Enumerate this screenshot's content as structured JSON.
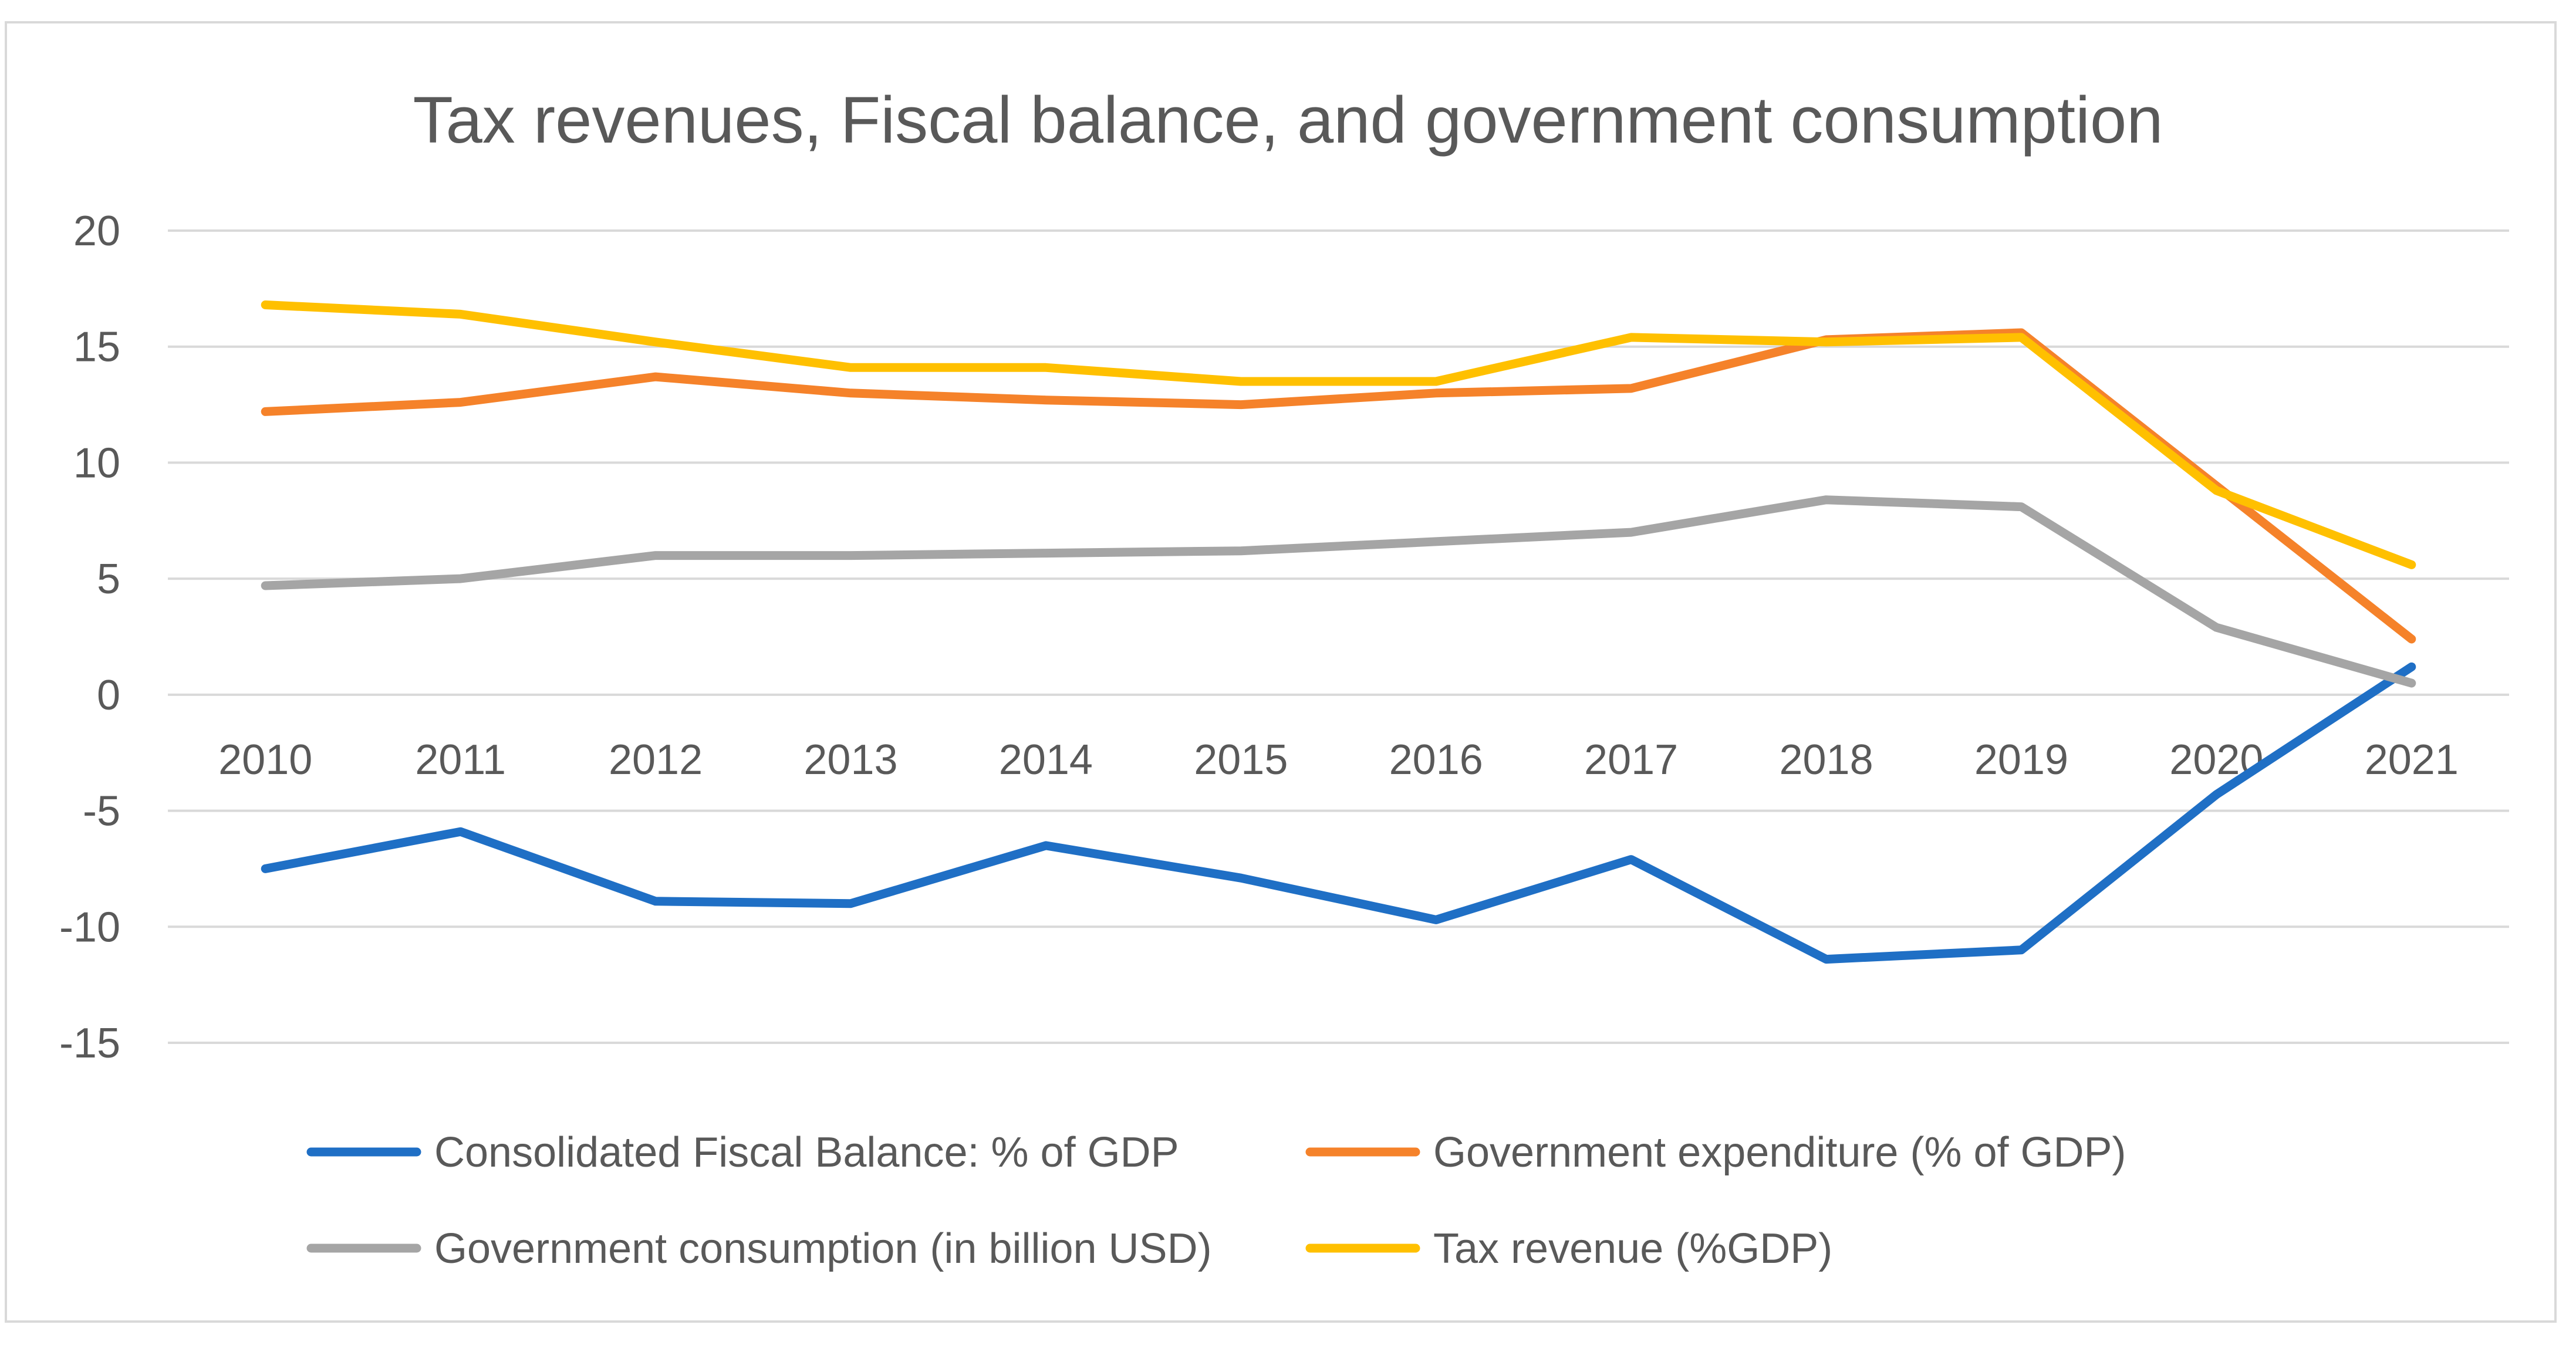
{
  "chart_data": {
    "type": "line",
    "title": "Tax revenues, Fiscal balance, and government consumption",
    "xlabel": "",
    "ylabel": "",
    "categories": [
      "2010",
      "2011",
      "2012",
      "2013",
      "2014",
      "2015",
      "2016",
      "2017",
      "2018",
      "2019",
      "2020",
      "2021"
    ],
    "ylim": [
      -15,
      20
    ],
    "yticks": [
      -15,
      -10,
      -5,
      0,
      5,
      10,
      15,
      20
    ],
    "grid": true,
    "legend_position": "bottom",
    "series": [
      {
        "name": "Consolidated Fiscal Balance: % of GDP",
        "color": "#1f6fc5",
        "values": [
          -7.5,
          -5.9,
          -8.9,
          -9.0,
          -6.5,
          -7.9,
          -9.7,
          -7.1,
          -11.4,
          -11.0,
          -4.3,
          1.2
        ]
      },
      {
        "name": "Government expenditure (% of GDP)",
        "color": "#f5822a",
        "values": [
          12.2,
          12.6,
          13.7,
          13.0,
          12.7,
          12.5,
          13.0,
          13.2,
          15.3,
          15.6,
          9.0,
          2.4
        ]
      },
      {
        "name": "Government consumption (in billion USD)",
        "color": "#a5a5a5",
        "values": [
          4.7,
          5.0,
          6.0,
          6.0,
          6.1,
          6.2,
          6.6,
          7.0,
          8.4,
          8.1,
          2.9,
          0.5
        ]
      },
      {
        "name": "Tax revenue (%GDP)",
        "color": "#ffc000",
        "values": [
          16.8,
          16.4,
          15.2,
          14.1,
          14.1,
          13.5,
          13.5,
          15.4,
          15.2,
          15.4,
          8.8,
          5.6
        ]
      }
    ]
  }
}
